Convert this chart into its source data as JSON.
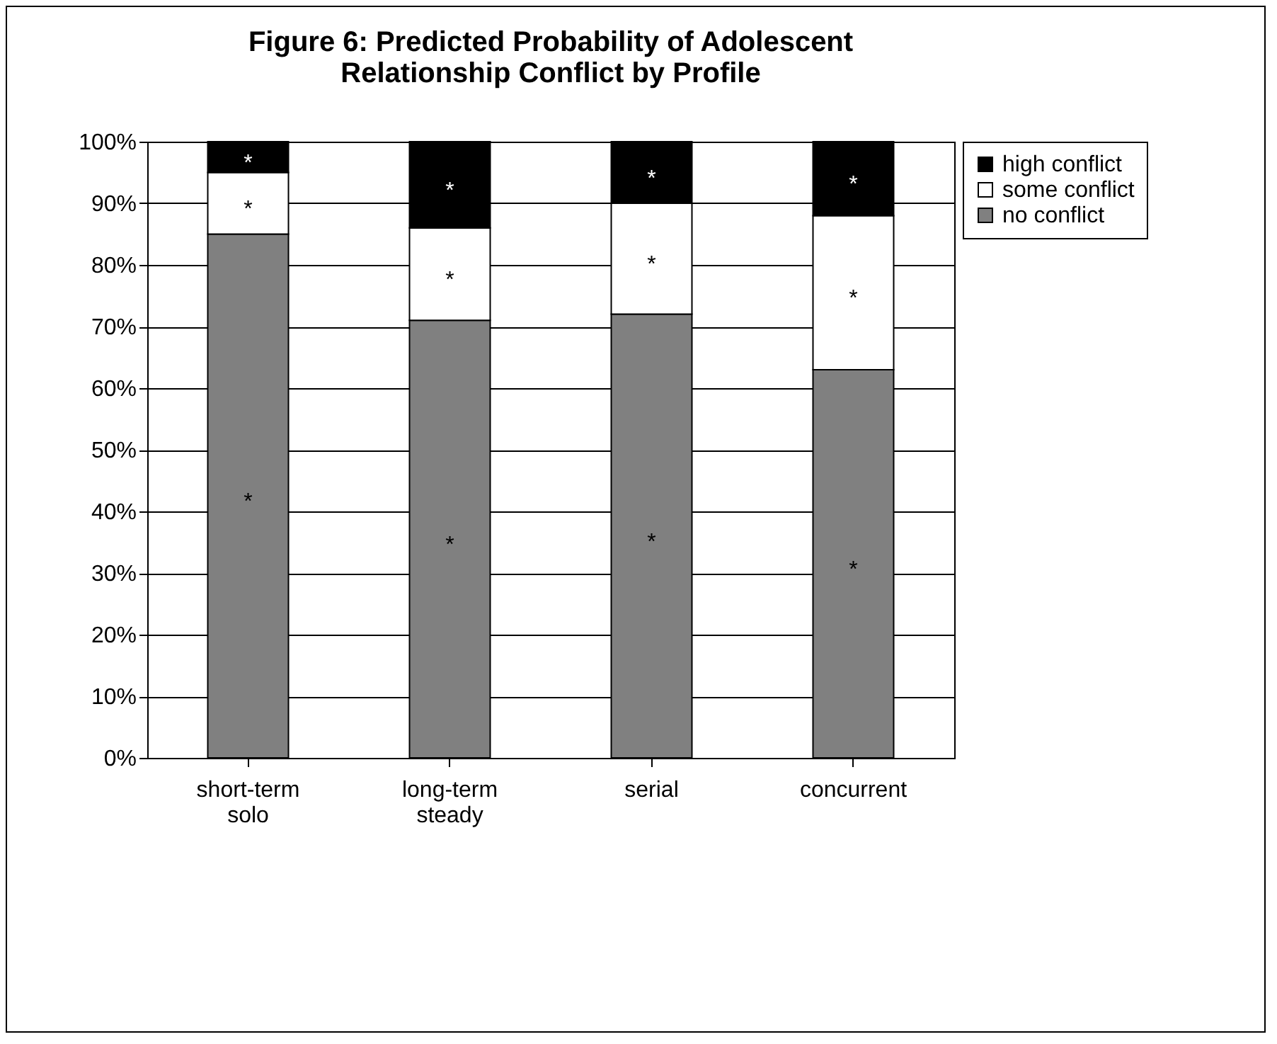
{
  "chart_data": {
    "type": "bar",
    "title": "Figure 6:  Predicted Probability of Adolescent Relationship Conflict by Profile",
    "categories": [
      "short-term solo",
      "long-term steady",
      "serial",
      "concurrent"
    ],
    "stacked": true,
    "series": [
      {
        "name": "no conflict",
        "color": "#808080",
        "values": [
          85,
          71,
          72,
          63
        ]
      },
      {
        "name": "some conflict",
        "color": "#ffffff",
        "values": [
          10,
          15,
          18,
          25
        ]
      },
      {
        "name": "high conflict",
        "color": "#000000",
        "values": [
          5,
          14,
          10,
          12
        ]
      }
    ],
    "ylim": [
      0,
      100
    ],
    "yticks": [
      {
        "value": 0,
        "label": "0%"
      },
      {
        "value": 10,
        "label": "10%"
      },
      {
        "value": 20,
        "label": "20%"
      },
      {
        "value": 30,
        "label": "30%"
      },
      {
        "value": 40,
        "label": "40%"
      },
      {
        "value": 50,
        "label": "50%"
      },
      {
        "value": 60,
        "label": "60%"
      },
      {
        "value": 70,
        "label": "70%"
      },
      {
        "value": 80,
        "label": "80%"
      },
      {
        "value": 90,
        "label": "90%"
      },
      {
        "value": 100,
        "label": "100%"
      }
    ],
    "grid": "y",
    "legend": "right",
    "annotations": [
      "*",
      "*",
      "*",
      "*",
      "*",
      "*",
      "*",
      "*",
      "*",
      "*",
      "*",
      "*"
    ]
  }
}
